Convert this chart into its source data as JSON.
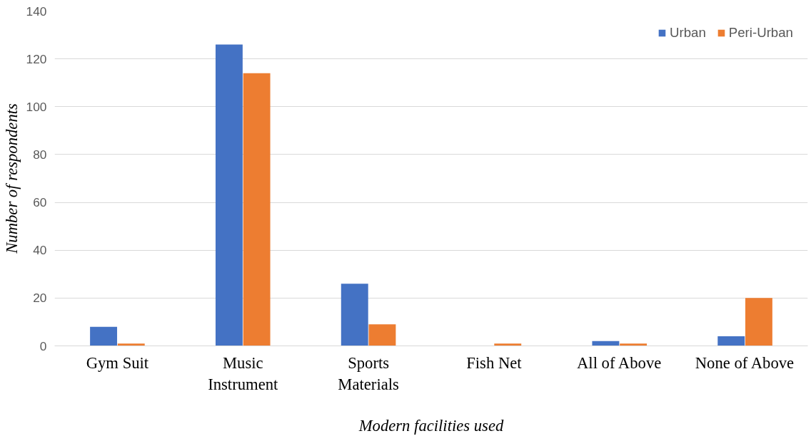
{
  "chart_data": {
    "type": "bar",
    "xlabel": "Modern facilities used",
    "ylabel": "Number of respondents",
    "categories": [
      "Gym Suit",
      "Music Instrument",
      "Sports Materials",
      "Fish Net",
      "All of Above",
      "None of Above"
    ],
    "series": [
      {
        "name": "Urban",
        "color": "#4472c4",
        "values": [
          8,
          126,
          26,
          0,
          2,
          4
        ]
      },
      {
        "name": "Peri-Urban",
        "color": "#ed7d31",
        "values": [
          1,
          114,
          9,
          1,
          1,
          20
        ]
      }
    ],
    "ylim": [
      0,
      140
    ],
    "yticks": [
      0,
      20,
      40,
      60,
      80,
      100,
      120,
      140
    ],
    "grid": "y",
    "legend": "top right"
  }
}
